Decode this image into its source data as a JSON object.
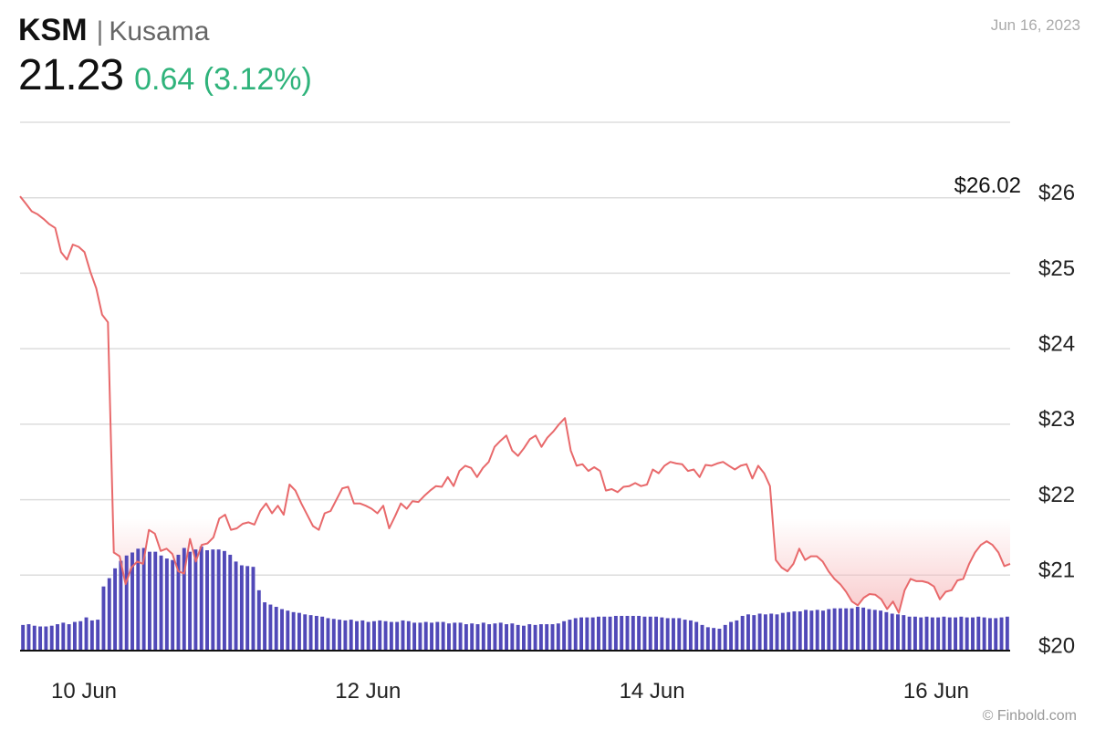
{
  "header": {
    "symbol": "KSM",
    "separator": "|",
    "name": "Kusama",
    "price": "21.23",
    "change": "0.64 (3.12%)",
    "date": "Jun 16, 2023"
  },
  "credit": "© Finbold.com",
  "colors": {
    "line": "#e8696b",
    "fill": "#f7b9bb",
    "volume": "#5149b8",
    "change": "#2fb37b",
    "grid": "#dddddd"
  },
  "chart_data": {
    "type": "line",
    "x_ticks": [
      "10 Jun",
      "12 Jun",
      "14 Jun",
      "16 Jun"
    ],
    "y_ticks": [
      "$20",
      "$21",
      "$22",
      "$23",
      "$24",
      "$25",
      "$26"
    ],
    "ylim": [
      20,
      27
    ],
    "max_label": "$26.02",
    "max_value": 26.02,
    "series": [
      {
        "values": [
          26.02,
          25.92,
          25.82,
          25.78,
          25.72,
          25.65,
          25.6,
          25.28,
          25.18,
          25.38,
          25.35,
          25.28,
          25.02,
          24.8,
          24.45,
          24.35,
          21.3,
          21.25,
          20.88,
          21.1,
          21.18,
          21.15,
          21.6,
          21.55,
          21.32,
          21.35,
          21.28,
          21.05,
          21.02,
          21.48,
          21.18,
          21.4,
          21.42,
          21.5,
          21.75,
          21.8,
          21.6,
          21.62,
          21.68,
          21.7,
          21.67,
          21.85,
          21.95,
          21.82,
          21.92,
          21.8,
          22.2,
          22.12,
          21.95,
          21.8,
          21.65,
          21.6,
          21.82,
          21.85,
          22.0,
          22.15,
          22.17,
          21.95,
          21.95,
          21.92,
          21.88,
          21.82,
          21.92,
          21.62,
          21.78,
          21.95,
          21.88,
          21.98,
          21.97,
          22.05,
          22.12,
          22.18,
          22.17,
          22.3,
          22.18,
          22.38,
          22.45,
          22.42,
          22.3,
          22.42,
          22.5,
          22.7,
          22.78,
          22.85,
          22.65,
          22.58,
          22.68,
          22.8,
          22.85,
          22.7,
          22.82,
          22.9,
          23.0,
          23.08,
          22.65,
          22.45,
          22.47,
          22.38,
          22.43,
          22.38,
          22.12,
          22.14,
          22.1,
          22.17,
          22.18,
          22.22,
          22.18,
          22.2,
          22.4,
          22.35,
          22.45,
          22.5,
          22.48,
          22.47,
          22.38,
          22.4,
          22.3,
          22.46,
          22.45,
          22.48,
          22.5,
          22.45,
          22.4,
          22.45,
          22.47,
          22.28,
          22.45,
          22.35,
          22.18,
          21.2,
          21.1,
          21.05,
          21.15,
          21.35,
          21.2,
          21.25,
          21.25,
          21.18,
          21.05,
          20.95,
          20.88,
          20.78,
          20.65,
          20.6,
          20.7,
          20.75,
          20.74,
          20.68,
          20.55,
          20.65,
          20.5,
          20.8,
          20.95,
          20.92,
          20.92,
          20.9,
          20.85,
          20.68,
          20.78,
          20.8,
          20.93,
          20.95,
          21.15,
          21.3,
          21.4,
          21.45,
          21.4,
          21.3,
          21.12,
          21.15
        ]
      }
    ],
    "volume": [
      0.34,
      0.35,
      0.33,
      0.32,
      0.32,
      0.33,
      0.35,
      0.37,
      0.35,
      0.38,
      0.39,
      0.44,
      0.4,
      0.41,
      0.85,
      0.96,
      1.09,
      1.19,
      1.26,
      1.3,
      1.35,
      1.36,
      1.31,
      1.31,
      1.26,
      1.22,
      1.2,
      1.27,
      1.36,
      1.31,
      1.34,
      1.38,
      1.33,
      1.34,
      1.34,
      1.32,
      1.27,
      1.18,
      1.13,
      1.12,
      1.11,
      0.8,
      0.64,
      0.61,
      0.58,
      0.55,
      0.53,
      0.51,
      0.5,
      0.48,
      0.47,
      0.46,
      0.45,
      0.43,
      0.42,
      0.41,
      0.4,
      0.41,
      0.39,
      0.4,
      0.38,
      0.39,
      0.4,
      0.39,
      0.38,
      0.38,
      0.4,
      0.39,
      0.37,
      0.37,
      0.38,
      0.37,
      0.38,
      0.38,
      0.36,
      0.37,
      0.37,
      0.35,
      0.36,
      0.35,
      0.37,
      0.35,
      0.36,
      0.37,
      0.35,
      0.36,
      0.34,
      0.33,
      0.35,
      0.34,
      0.35,
      0.35,
      0.35,
      0.36,
      0.39,
      0.41,
      0.43,
      0.44,
      0.44,
      0.44,
      0.45,
      0.45,
      0.45,
      0.46,
      0.46,
      0.46,
      0.46,
      0.46,
      0.45,
      0.45,
      0.45,
      0.44,
      0.43,
      0.43,
      0.43,
      0.41,
      0.4,
      0.38,
      0.34,
      0.31,
      0.3,
      0.29,
      0.34,
      0.38,
      0.4,
      0.46,
      0.48,
      0.47,
      0.49,
      0.48,
      0.49,
      0.48,
      0.5,
      0.51,
      0.52,
      0.52,
      0.54,
      0.53,
      0.54,
      0.53,
      0.55,
      0.56,
      0.56,
      0.56,
      0.56,
      0.58,
      0.57,
      0.55,
      0.54,
      0.53,
      0.51,
      0.49,
      0.48,
      0.47,
      0.45,
      0.45,
      0.44,
      0.45,
      0.44,
      0.44,
      0.45,
      0.44,
      0.44,
      0.45,
      0.44,
      0.44,
      0.45,
      0.44,
      0.43,
      0.43,
      0.44,
      0.45
    ]
  }
}
